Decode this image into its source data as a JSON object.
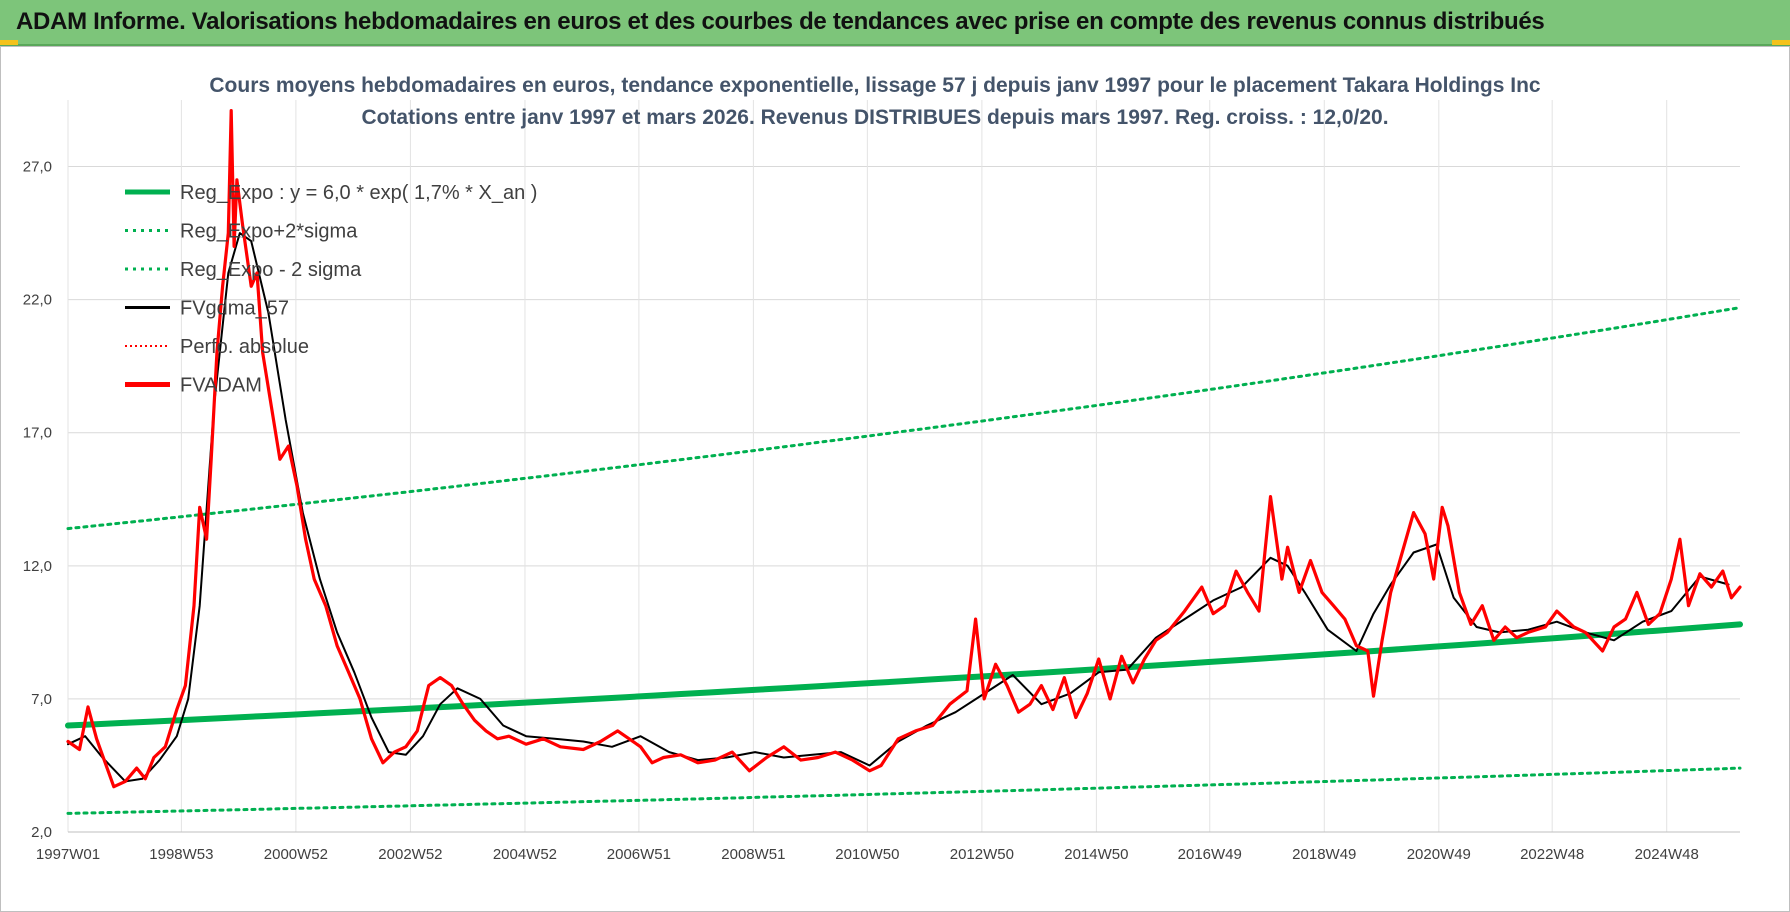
{
  "header": {
    "banner_text": "ADAM Informe. Valorisations hebdomadaires en euros et des courbes de tendances avec prise en compte des revenus connus distribués"
  },
  "colors": {
    "banner_bg": "#7dc57a",
    "green": "#00b050",
    "red": "#ff0000",
    "black": "#000000",
    "title": "#44546a"
  },
  "chart_data": {
    "type": "line",
    "title_line1": "Cours moyens hebdomadaires en euros, tendance exponentielle, lissage 57 j depuis janv 1997 pour le placement Takara Holdings Inc",
    "title_line2": "Cotations entre janv 1997 et mars 2026. Revenus DISTRIBUES depuis mars 1997. Reg. croiss. : 12,0/20.",
    "x_range": [
      1997.0,
      2026.2
    ],
    "ylim": [
      2.0,
      29.5
    ],
    "y_ticks": [
      2.0,
      7.0,
      12.0,
      17.0,
      22.0,
      27.0
    ],
    "y_tick_labels": [
      "2,0",
      "7,0",
      "12,0",
      "17,0",
      "22,0",
      "27,0"
    ],
    "x_ticks": [
      1997.0,
      1998.98,
      2000.98,
      2002.98,
      2004.98,
      2006.97,
      2008.97,
      2010.96,
      2012.96,
      2014.96,
      2016.94,
      2018.94,
      2020.94,
      2022.92,
      2024.92
    ],
    "x_tick_labels": [
      "1997W01",
      "1998W53",
      "2000W52",
      "2002W52",
      "2004W52",
      "2006W51",
      "2008W51",
      "2010W50",
      "2012W50",
      "2014W50",
      "2016W49",
      "2018W49",
      "2020W49",
      "2022W48",
      "2024W48"
    ],
    "grid": true,
    "legend_position": "top-left",
    "legend": [
      {
        "label": "Reg_Expo : y = 6,0 * exp( 1,7% *  X_an )",
        "color": "#00b050",
        "style": "solid-thick"
      },
      {
        "label": "Reg_Expo+2*sigma",
        "color": "#00b050",
        "style": "dotted"
      },
      {
        "label": "Reg_Expo - 2 sigma",
        "color": "#00b050",
        "style": "dotted"
      },
      {
        "label": "FVgdma_57",
        "color": "#000000",
        "style": "solid"
      },
      {
        "label": "Perfo. absolue",
        "color": "#ff0000",
        "style": "dotted"
      },
      {
        "label": "FVADAM",
        "color": "#ff0000",
        "style": "solid-thick"
      }
    ],
    "series": [
      {
        "name": "Reg_Expo : y = 6,0 * exp( 1,7% *  X_an )",
        "x": [
          1997.0,
          2026.2
        ],
        "values": [
          6.0,
          9.8
        ]
      },
      {
        "name": "Reg_Expo+2*sigma",
        "x": [
          1997.0,
          2026.2
        ],
        "values": [
          13.4,
          21.7
        ]
      },
      {
        "name": "Reg_Expo - 2 sigma",
        "x": [
          1997.0,
          2026.2
        ],
        "values": [
          2.7,
          4.4
        ]
      },
      {
        "name": "FVgdma_57",
        "x": [
          1997.0,
          1997.3,
          1997.6,
          1998.0,
          1998.3,
          1998.6,
          1998.9,
          1999.1,
          1999.3,
          1999.55,
          1999.8,
          2000.0,
          2000.2,
          2000.5,
          2000.8,
          2001.1,
          2001.4,
          2001.7,
          2002.0,
          2002.3,
          2002.6,
          2002.9,
          2003.2,
          2003.5,
          2003.8,
          2004.2,
          2004.6,
          2005.0,
          2005.5,
          2006.0,
          2006.5,
          2007.0,
          2007.5,
          2008.0,
          2008.5,
          2009.0,
          2009.5,
          2010.0,
          2010.5,
          2011.0,
          2011.5,
          2012.0,
          2012.5,
          2013.0,
          2013.5,
          2014.0,
          2014.5,
          2015.0,
          2015.5,
          2016.0,
          2016.5,
          2017.0,
          2017.5,
          2018.0,
          2018.3,
          2018.6,
          2019.0,
          2019.5,
          2019.8,
          2020.1,
          2020.5,
          2020.9,
          2021.2,
          2021.6,
          2022.0,
          2022.5,
          2023.0,
          2023.5,
          2024.0,
          2024.5,
          2025.0,
          2025.5,
          2026.0
        ],
        "values": [
          5.3,
          5.6,
          4.8,
          3.9,
          4.0,
          4.7,
          5.6,
          7.0,
          10.5,
          18.0,
          23.0,
          24.5,
          24.2,
          21.5,
          17.5,
          14.0,
          11.5,
          9.5,
          8.0,
          6.3,
          5.0,
          4.9,
          5.6,
          6.8,
          7.4,
          7.0,
          6.0,
          5.6,
          5.5,
          5.4,
          5.2,
          5.6,
          5.0,
          4.7,
          4.8,
          5.0,
          4.8,
          4.9,
          5.0,
          4.5,
          5.4,
          6.0,
          6.5,
          7.2,
          7.9,
          6.8,
          7.2,
          8.0,
          8.1,
          9.3,
          10.0,
          10.7,
          11.2,
          12.3,
          12.0,
          11.0,
          9.6,
          8.8,
          10.2,
          11.3,
          12.5,
          12.8,
          10.8,
          9.7,
          9.5,
          9.6,
          9.9,
          9.5,
          9.2,
          9.9,
          10.3,
          11.6,
          11.3
        ]
      },
      {
        "name": "FVADAM",
        "x": [
          1997.0,
          1997.2,
          1997.35,
          1997.5,
          1997.65,
          1997.8,
          1998.0,
          1998.2,
          1998.35,
          1998.5,
          1998.7,
          1998.9,
          1999.05,
          1999.2,
          1999.3,
          1999.42,
          1999.5,
          1999.6,
          1999.7,
          1999.8,
          1999.85,
          1999.9,
          1999.95,
          2000.05,
          2000.2,
          2000.3,
          2000.4,
          2000.55,
          2000.7,
          2000.85,
          2001.0,
          2001.15,
          2001.3,
          2001.5,
          2001.7,
          2001.9,
          2002.1,
          2002.3,
          2002.5,
          2002.7,
          2002.9,
          2003.1,
          2003.3,
          2003.5,
          2003.7,
          2003.9,
          2004.1,
          2004.3,
          2004.5,
          2004.7,
          2005.0,
          2005.3,
          2005.6,
          2006.0,
          2006.3,
          2006.6,
          2007.0,
          2007.2,
          2007.4,
          2007.7,
          2008.0,
          2008.3,
          2008.6,
          2008.9,
          2009.2,
          2009.5,
          2009.8,
          2010.1,
          2010.4,
          2010.7,
          2011.0,
          2011.2,
          2011.5,
          2011.8,
          2012.1,
          2012.4,
          2012.7,
          2012.85,
          2013.0,
          2013.2,
          2013.4,
          2013.6,
          2013.8,
          2014.0,
          2014.2,
          2014.4,
          2014.6,
          2014.8,
          2015.0,
          2015.2,
          2015.4,
          2015.6,
          2015.8,
          2016.0,
          2016.2,
          2016.5,
          2016.8,
          2017.0,
          2017.2,
          2017.4,
          2017.6,
          2017.8,
          2018.0,
          2018.2,
          2018.3,
          2018.5,
          2018.7,
          2018.9,
          2019.1,
          2019.3,
          2019.5,
          2019.7,
          2019.8,
          2019.95,
          2020.1,
          2020.3,
          2020.5,
          2020.7,
          2020.85,
          2021.0,
          2021.1,
          2021.3,
          2021.5,
          2021.7,
          2021.9,
          2022.1,
          2022.3,
          2022.5,
          2022.8,
          2023.0,
          2023.3,
          2023.5,
          2023.8,
          2024.0,
          2024.2,
          2024.4,
          2024.6,
          2024.8,
          2025.0,
          2025.15,
          2025.3,
          2025.5,
          2025.7,
          2025.9,
          2026.05,
          2026.2
        ],
        "values": [
          5.4,
          5.1,
          6.7,
          5.5,
          4.6,
          3.7,
          3.9,
          4.4,
          4.0,
          4.8,
          5.2,
          6.6,
          7.5,
          10.5,
          14.2,
          13.0,
          16.0,
          20.0,
          22.5,
          24.5,
          29.1,
          24.0,
          26.5,
          24.8,
          22.5,
          23.0,
          20.0,
          18.0,
          16.0,
          16.5,
          15.0,
          13.0,
          11.5,
          10.5,
          9.0,
          8.0,
          7.0,
          5.5,
          4.6,
          5.0,
          5.2,
          5.8,
          7.5,
          7.8,
          7.5,
          6.8,
          6.2,
          5.8,
          5.5,
          5.6,
          5.3,
          5.5,
          5.2,
          5.1,
          5.4,
          5.8,
          5.2,
          4.6,
          4.8,
          4.9,
          4.6,
          4.7,
          5.0,
          4.3,
          4.8,
          5.2,
          4.7,
          4.8,
          5.0,
          4.7,
          4.3,
          4.5,
          5.5,
          5.8,
          6.0,
          6.8,
          7.3,
          10.0,
          7.0,
          8.3,
          7.5,
          6.5,
          6.8,
          7.5,
          6.6,
          7.8,
          6.3,
          7.2,
          8.5,
          7.0,
          8.6,
          7.6,
          8.5,
          9.2,
          9.5,
          10.3,
          11.2,
          10.2,
          10.5,
          11.8,
          11.0,
          10.3,
          14.6,
          11.5,
          12.7,
          11.0,
          12.2,
          11.0,
          10.5,
          10.0,
          9.0,
          8.8,
          7.1,
          9.2,
          11.0,
          12.5,
          14.0,
          13.2,
          11.5,
          14.2,
          13.5,
          11.0,
          9.8,
          10.5,
          9.2,
          9.7,
          9.3,
          9.5,
          9.7,
          10.3,
          9.7,
          9.5,
          8.8,
          9.7,
          10.0,
          11.0,
          9.8,
          10.2,
          11.5,
          13.0,
          10.5,
          11.7,
          11.2,
          11.8,
          10.8,
          11.2
        ]
      }
    ]
  }
}
